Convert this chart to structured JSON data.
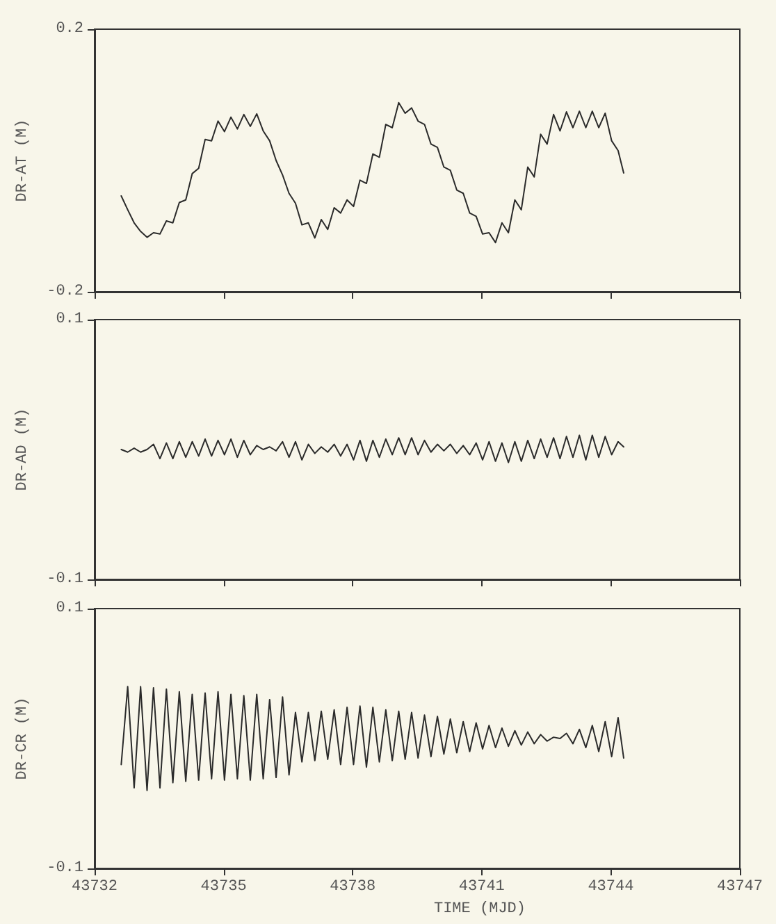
{
  "chart_data": [
    {
      "type": "line",
      "ylabel": "DR-AT (M)",
      "xlim": [
        43732,
        43747
      ],
      "xticks": [
        43732,
        43735,
        43738,
        43741,
        43744,
        43747
      ],
      "ylim": [
        -0.2,
        0.2
      ],
      "yticks": [
        -0.2,
        0.2
      ],
      "tick_labels": "y",
      "x": [
        43732.62,
        43732.77,
        43732.92,
        43733.07,
        43733.22,
        43733.37,
        43733.52,
        43733.67,
        43733.82,
        43733.97,
        43734.12,
        43734.27,
        43734.42,
        43734.57,
        43734.72,
        43734.87,
        43735.02,
        43735.17,
        43735.32,
        43735.47,
        43735.62,
        43735.77,
        43735.92,
        43736.07,
        43736.22,
        43736.37,
        43736.52,
        43736.67,
        43736.82,
        43736.97,
        43737.12,
        43737.27,
        43737.42,
        43737.57,
        43737.72,
        43737.87,
        43738.02,
        43738.17,
        43738.32,
        43738.47,
        43738.62,
        43738.77,
        43738.92,
        43739.07,
        43739.22,
        43739.37,
        43739.52,
        43739.67,
        43739.82,
        43739.97,
        43740.12,
        43740.27,
        43740.42,
        43740.57,
        43740.72,
        43740.87,
        43741.02,
        43741.17,
        43741.32,
        43741.47,
        43741.62,
        43741.77,
        43741.92,
        43742.07,
        43742.22,
        43742.37,
        43742.52,
        43742.67,
        43742.82,
        43742.97,
        43743.12,
        43743.27,
        43743.42,
        43743.57,
        43743.72,
        43743.87,
        43744.02,
        43744.17,
        43744.3
      ],
      "series": [
        {
          "color": "#2b2b2b",
          "values": [
            -0.054,
            -0.075,
            -0.095,
            -0.108,
            -0.117,
            -0.11,
            -0.112,
            -0.092,
            -0.095,
            -0.064,
            -0.06,
            -0.02,
            -0.012,
            0.032,
            0.03,
            0.06,
            0.044,
            0.066,
            0.048,
            0.07,
            0.052,
            0.071,
            0.045,
            0.03,
            0.0,
            -0.022,
            -0.05,
            -0.065,
            -0.098,
            -0.095,
            -0.118,
            -0.09,
            -0.105,
            -0.072,
            -0.08,
            -0.06,
            -0.07,
            -0.03,
            -0.035,
            0.01,
            0.005,
            0.055,
            0.05,
            0.088,
            0.072,
            0.08,
            0.06,
            0.055,
            0.025,
            0.02,
            -0.01,
            -0.015,
            -0.045,
            -0.05,
            -0.08,
            -0.085,
            -0.112,
            -0.11,
            -0.125,
            -0.095,
            -0.11,
            -0.06,
            -0.075,
            -0.01,
            -0.025,
            0.04,
            0.025,
            0.07,
            0.045,
            0.074,
            0.05,
            0.075,
            0.05,
            0.075,
            0.05,
            0.072,
            0.03,
            0.015,
            -0.019
          ]
        }
      ]
    },
    {
      "type": "line",
      "ylabel": "DR-AD (M)",
      "xlim": [
        43732,
        43747
      ],
      "xticks": [
        43732,
        43735,
        43738,
        43741,
        43744,
        43747
      ],
      "ylim": [
        -0.1,
        0.1
      ],
      "yticks": [
        -0.1,
        0.1
      ],
      "tick_labels": "y",
      "x": [
        43732.62,
        43732.77,
        43732.92,
        43733.07,
        43733.22,
        43733.37,
        43733.52,
        43733.67,
        43733.82,
        43733.97,
        43734.12,
        43734.27,
        43734.42,
        43734.57,
        43734.72,
        43734.87,
        43735.02,
        43735.17,
        43735.32,
        43735.47,
        43735.62,
        43735.77,
        43735.92,
        43736.07,
        43736.22,
        43736.37,
        43736.52,
        43736.67,
        43736.82,
        43736.97,
        43737.12,
        43737.27,
        43737.42,
        43737.57,
        43737.72,
        43737.87,
        43738.02,
        43738.17,
        43738.32,
        43738.47,
        43738.62,
        43738.77,
        43738.92,
        43739.07,
        43739.22,
        43739.37,
        43739.52,
        43739.67,
        43739.82,
        43739.97,
        43740.12,
        43740.27,
        43740.42,
        43740.57,
        43740.72,
        43740.87,
        43741.02,
        43741.17,
        43741.32,
        43741.47,
        43741.62,
        43741.77,
        43741.92,
        43742.07,
        43742.22,
        43742.37,
        43742.52,
        43742.67,
        43742.82,
        43742.97,
        43743.12,
        43743.27,
        43743.42,
        43743.57,
        43743.72,
        43743.87,
        43744.02,
        43744.17,
        43744.3
      ],
      "series": [
        {
          "color": "#2b2b2b",
          "values": [
            0.0,
            -0.002,
            0.001,
            -0.002,
            0.0,
            0.004,
            -0.007,
            0.005,
            -0.007,
            0.006,
            -0.006,
            0.006,
            -0.005,
            0.008,
            -0.005,
            0.007,
            -0.004,
            0.008,
            -0.006,
            0.007,
            -0.004,
            0.003,
            0.0,
            0.002,
            -0.001,
            0.006,
            -0.006,
            0.006,
            -0.008,
            0.004,
            -0.003,
            0.002,
            -0.002,
            0.004,
            -0.005,
            0.004,
            -0.008,
            0.007,
            -0.009,
            0.007,
            -0.006,
            0.008,
            -0.004,
            0.009,
            -0.004,
            0.009,
            -0.004,
            0.007,
            -0.002,
            0.004,
            -0.001,
            0.004,
            -0.003,
            0.003,
            -0.004,
            0.005,
            -0.008,
            0.006,
            -0.009,
            0.005,
            -0.01,
            0.006,
            -0.009,
            0.007,
            -0.007,
            0.008,
            -0.006,
            0.009,
            -0.007,
            0.01,
            -0.006,
            0.011,
            -0.008,
            0.011,
            -0.006,
            0.01,
            -0.004,
            0.006,
            0.002
          ]
        }
      ]
    },
    {
      "type": "line",
      "ylabel": "DR-CR (M)",
      "xlabel": "TIME (MJD)",
      "xlim": [
        43732,
        43747
      ],
      "xticks": [
        43732,
        43735,
        43738,
        43741,
        43744,
        43747
      ],
      "ylim": [
        -0.1,
        0.1
      ],
      "yticks": [
        -0.1,
        0.1
      ],
      "x": [
        43732.62,
        43732.77,
        43732.92,
        43733.07,
        43733.22,
        43733.37,
        43733.52,
        43733.67,
        43733.82,
        43733.97,
        43734.12,
        43734.27,
        43734.42,
        43734.57,
        43734.72,
        43734.87,
        43735.02,
        43735.17,
        43735.32,
        43735.47,
        43735.62,
        43735.77,
        43735.92,
        43736.07,
        43736.22,
        43736.37,
        43736.52,
        43736.67,
        43736.82,
        43736.97,
        43737.12,
        43737.27,
        43737.42,
        43737.57,
        43737.72,
        43737.87,
        43738.02,
        43738.17,
        43738.32,
        43738.47,
        43738.62,
        43738.77,
        43738.92,
        43739.07,
        43739.22,
        43739.37,
        43739.52,
        43739.67,
        43739.82,
        43739.97,
        43740.12,
        43740.27,
        43740.42,
        43740.57,
        43740.72,
        43740.87,
        43741.02,
        43741.17,
        43741.32,
        43741.47,
        43741.62,
        43741.77,
        43741.92,
        43742.07,
        43742.22,
        43742.37,
        43742.52,
        43742.67,
        43742.82,
        43742.97,
        43743.12,
        43743.27,
        43743.42,
        43743.57,
        43743.72,
        43743.87,
        43744.02,
        43744.17,
        43744.3
      ],
      "series": [
        {
          "color": "#2b2b2b",
          "values": [
            -0.02,
            0.04,
            -0.038,
            0.04,
            -0.04,
            0.039,
            -0.038,
            0.038,
            -0.034,
            0.036,
            -0.033,
            0.034,
            -0.032,
            0.035,
            -0.031,
            0.036,
            -0.032,
            0.034,
            -0.031,
            0.033,
            -0.032,
            0.034,
            -0.031,
            0.03,
            -0.03,
            0.032,
            -0.028,
            0.02,
            -0.018,
            0.02,
            -0.017,
            0.021,
            -0.016,
            0.022,
            -0.02,
            0.024,
            -0.02,
            0.025,
            -0.022,
            0.024,
            -0.018,
            0.022,
            -0.017,
            0.021,
            -0.016,
            0.02,
            -0.015,
            0.018,
            -0.014,
            0.017,
            -0.012,
            0.015,
            -0.011,
            0.013,
            -0.01,
            0.012,
            -0.008,
            0.01,
            -0.007,
            0.008,
            -0.006,
            0.006,
            -0.005,
            0.005,
            -0.004,
            0.003,
            -0.002,
            0.001,
            0.0,
            0.004,
            -0.004,
            0.007,
            -0.007,
            0.01,
            -0.01,
            0.013,
            -0.014,
            0.016,
            -0.015
          ]
        }
      ]
    }
  ]
}
